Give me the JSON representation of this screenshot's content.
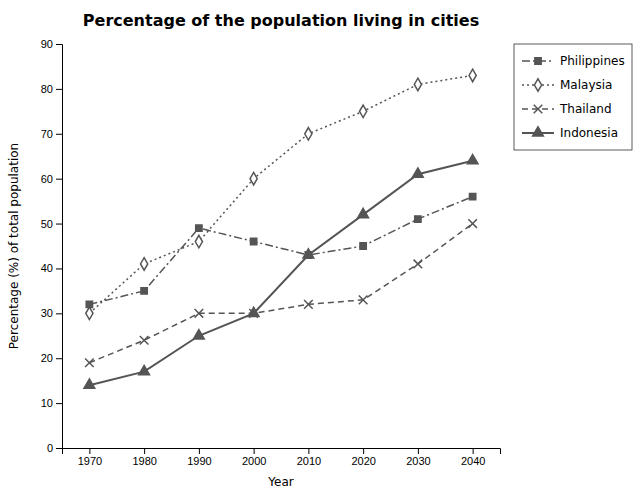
{
  "chart_data": {
    "type": "line",
    "title": "Percentage of the population living in cities",
    "xlabel": "Year",
    "ylabel": "Percentage (%) of total population",
    "x": [
      1970,
      1980,
      1990,
      2000,
      2010,
      2020,
      2030,
      2040
    ],
    "series": [
      {
        "name": "Philippines",
        "color": "#555555",
        "marker": "square",
        "line_style": "dashdot",
        "values": [
          32,
          35,
          49,
          46,
          43,
          45,
          51,
          56
        ]
      },
      {
        "name": "Malaysia",
        "color": "#555555",
        "marker": "diamond",
        "line_style": "dotted",
        "values": [
          30,
          41,
          46,
          60,
          70,
          75,
          81,
          83
        ]
      },
      {
        "name": "Thailand",
        "color": "#555555",
        "marker": "x",
        "line_style": "dashed",
        "values": [
          19,
          24,
          30,
          30,
          32,
          33,
          41,
          50
        ]
      },
      {
        "name": "Indonesia",
        "color": "#555555",
        "marker": "triangle",
        "line_style": "solid",
        "values": [
          14,
          17,
          25,
          30,
          43,
          52,
          61,
          64
        ]
      }
    ],
    "xlim": [
      1965,
      2045
    ],
    "xticks": [
      1970,
      1980,
      1990,
      2000,
      2010,
      2020,
      2030,
      2040
    ],
    "ylim": [
      0,
      90
    ],
    "yticks": [
      0,
      10,
      20,
      30,
      40,
      50,
      60,
      70,
      80,
      90
    ],
    "grid": false,
    "legend": "right"
  }
}
